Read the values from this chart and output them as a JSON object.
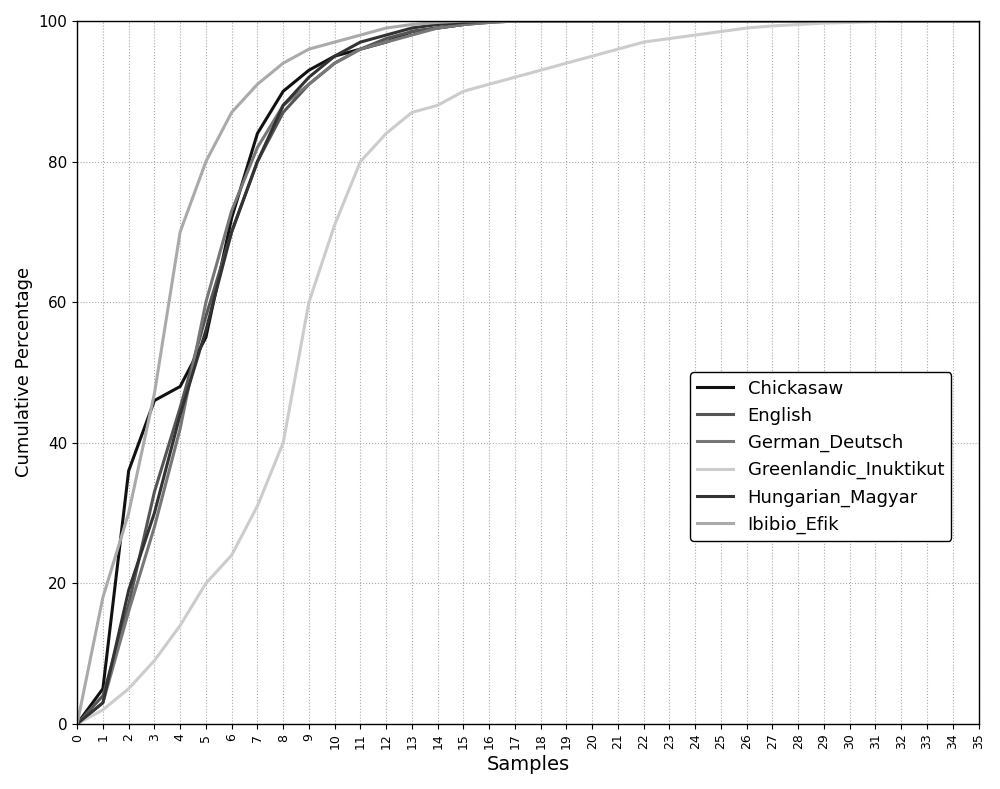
{
  "xlabel": "Samples",
  "ylabel": "Cumulative Percentage",
  "xlim": [
    0,
    35
  ],
  "ylim": [
    0,
    100
  ],
  "x_ticks": [
    0,
    1,
    2,
    3,
    4,
    5,
    6,
    7,
    8,
    9,
    10,
    11,
    12,
    13,
    14,
    15,
    16,
    17,
    18,
    19,
    20,
    21,
    22,
    23,
    24,
    25,
    26,
    27,
    28,
    29,
    30,
    31,
    32,
    33,
    34,
    35
  ],
  "y_ticks": [
    0,
    20,
    40,
    60,
    80,
    100
  ],
  "background_color": "#ffffff",
  "grid_color": "#aaaaaa",
  "grid_linestyle": ":",
  "grid_linewidth": 0.8,
  "curves": [
    {
      "label": "Chickasaw",
      "color": "#111111",
      "lw": 2.2,
      "x": [
        0,
        1,
        2,
        3,
        4,
        5,
        6,
        7,
        8,
        9,
        10,
        11,
        12,
        13,
        14,
        15,
        16,
        17,
        18,
        19,
        20,
        21,
        22,
        23,
        24,
        25,
        26,
        27,
        28,
        29,
        30,
        31,
        32,
        33,
        34,
        35
      ],
      "y": [
        0,
        5,
        36,
        46,
        48,
        55,
        72,
        84,
        90,
        93,
        95,
        96,
        97,
        98.5,
        99,
        99.5,
        100,
        100,
        100,
        100,
        100,
        100,
        100,
        100,
        100,
        100,
        100,
        100,
        100,
        100,
        100,
        100,
        100,
        100,
        100,
        100
      ]
    },
    {
      "label": "English",
      "color": "#555555",
      "lw": 2.2,
      "x": [
        0,
        1,
        2,
        3,
        4,
        5,
        6,
        7,
        8,
        9,
        10,
        11,
        12,
        13,
        14,
        15,
        16,
        17,
        18,
        19,
        20,
        21,
        22,
        23,
        24,
        25,
        26,
        27,
        28,
        29,
        30,
        31,
        32,
        33,
        34,
        35
      ],
      "y": [
        0,
        4,
        17,
        33,
        45,
        58,
        70,
        80,
        87,
        91,
        94,
        96,
        97.5,
        98.5,
        99,
        99.5,
        99.8,
        100,
        100,
        100,
        100,
        100,
        100,
        100,
        100,
        100,
        100,
        100,
        100,
        100,
        100,
        100,
        100,
        100,
        100,
        100
      ]
    },
    {
      "label": "German_Deutsch",
      "color": "#777777",
      "lw": 2.2,
      "x": [
        0,
        1,
        2,
        3,
        4,
        5,
        6,
        7,
        8,
        9,
        10,
        11,
        12,
        13,
        14,
        15,
        16,
        17,
        18,
        19,
        20,
        21,
        22,
        23,
        24,
        25,
        26,
        27,
        28,
        29,
        30,
        31,
        32,
        33,
        34,
        35
      ],
      "y": [
        0,
        3,
        16,
        28,
        42,
        60,
        73,
        82,
        88,
        91,
        94,
        96,
        97,
        98,
        99,
        99.5,
        99.8,
        100,
        100,
        100,
        100,
        100,
        100,
        100,
        100,
        100,
        100,
        100,
        100,
        100,
        100,
        100,
        100,
        100,
        100,
        100
      ]
    },
    {
      "label": "Greenlandic_Inuktikut",
      "color": "#cccccc",
      "lw": 2.2,
      "x": [
        0,
        1,
        2,
        3,
        4,
        5,
        6,
        7,
        8,
        9,
        10,
        11,
        12,
        13,
        14,
        15,
        16,
        17,
        18,
        19,
        20,
        21,
        22,
        23,
        24,
        25,
        26,
        27,
        28,
        29,
        30,
        31,
        32,
        33,
        34,
        35
      ],
      "y": [
        0,
        2,
        5,
        9,
        14,
        20,
        24,
        31,
        40,
        60,
        71,
        80,
        84,
        87,
        88,
        90,
        91,
        92,
        93,
        94,
        95,
        96,
        97,
        97.5,
        98,
        98.5,
        99,
        99.3,
        99.5,
        99.7,
        99.8,
        99.9,
        100,
        100,
        100,
        100
      ]
    },
    {
      "label": "Hungarian_Magyar",
      "color": "#333333",
      "lw": 2.2,
      "x": [
        0,
        1,
        2,
        3,
        4,
        5,
        6,
        7,
        8,
        9,
        10,
        11,
        12,
        13,
        14,
        15,
        16,
        17,
        18,
        19,
        20,
        21,
        22,
        23,
        24,
        25,
        26,
        27,
        28,
        29,
        30,
        31,
        32,
        33,
        34,
        35
      ],
      "y": [
        0,
        3,
        19,
        30,
        44,
        56,
        70,
        80,
        88,
        92,
        95,
        97,
        98,
        99,
        99.5,
        99.8,
        100,
        100,
        100,
        100,
        100,
        100,
        100,
        100,
        100,
        100,
        100,
        100,
        100,
        100,
        100,
        100,
        100,
        100,
        100,
        100
      ]
    },
    {
      "label": "Ibibio_Efik",
      "color": "#aaaaaa",
      "lw": 2.2,
      "x": [
        0,
        1,
        2,
        3,
        4,
        5,
        6,
        7,
        8,
        9,
        10,
        11,
        12,
        13,
        14,
        15,
        16,
        17,
        18,
        19,
        20,
        21,
        22,
        23,
        24,
        25,
        26,
        27,
        28,
        29,
        30,
        31,
        32,
        33,
        34,
        35
      ],
      "y": [
        0,
        18,
        30,
        47,
        70,
        80,
        87,
        91,
        94,
        96,
        97,
        98,
        99,
        99.5,
        99.8,
        100,
        100,
        100,
        100,
        100,
        100,
        100,
        100,
        100,
        100,
        100,
        100,
        100,
        100,
        100,
        100,
        100,
        100,
        100,
        100,
        100
      ]
    }
  ]
}
